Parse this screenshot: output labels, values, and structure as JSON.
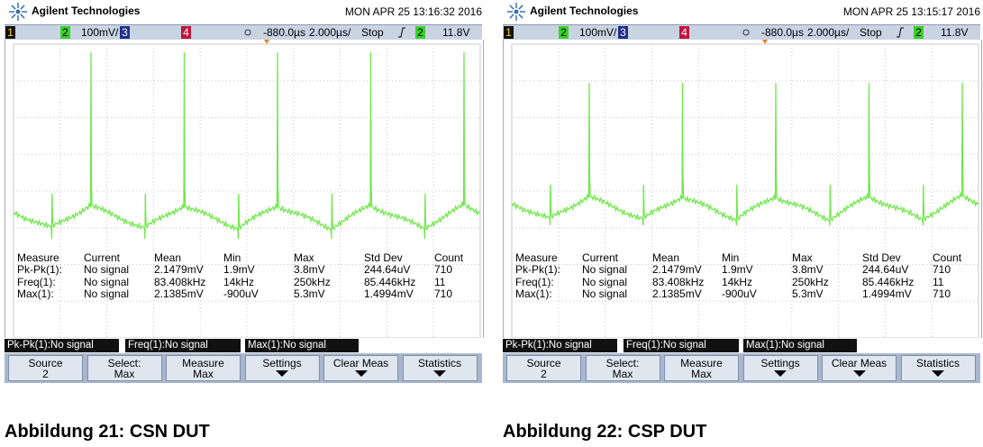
{
  "panels": [
    {
      "header": {
        "brand": "Agilent Technologies",
        "datetime": "MON APR 25 13:16:32 2016"
      },
      "status_bar": {
        "ch1": "1",
        "ch2": "2",
        "ch2_scale": "100mV/",
        "ch3": "3",
        "ch4": "4",
        "delay": "-880.0µs",
        "timebase": "2.000µs/",
        "run_state": "Stop",
        "trigger_source": "2",
        "trigger_level": "11.8V"
      },
      "measurements": {
        "header": [
          "Measure",
          "Current",
          "Mean",
          "Min",
          "Max",
          "Std Dev",
          "Count"
        ],
        "rows": [
          [
            "Pk-Pk(1):",
            "No signal",
            "2.1479mV",
            "1.9mV",
            "3.8mV",
            "244.64uV",
            "710"
          ],
          [
            "Freq(1):",
            "No signal",
            "83.408kHz",
            "14kHz",
            "250kHz",
            "85.446kHz",
            "11"
          ],
          [
            "Max(1):",
            "No signal",
            "2.1385mV",
            "-900uV",
            "5.3mV",
            "1.4994mV",
            "710"
          ]
        ]
      },
      "status_boxes": [
        "Pk-Pk(1):No signal",
        "Freq(1):No signal",
        "Max(1):No signal"
      ],
      "softkeys": [
        {
          "label": "Source",
          "value": "2"
        },
        {
          "label": "Select:",
          "value": "Max"
        },
        {
          "label": "Measure",
          "value": "Max"
        },
        {
          "label": "Settings"
        },
        {
          "label": "Clear Meas"
        },
        {
          "label": "Statistics"
        }
      ],
      "caption": "Abbildung 21: CSN DUT"
    },
    {
      "header": {
        "brand": "Agilent Technologies",
        "datetime": "MON APR 25 13:15:17 2016"
      },
      "status_bar": {
        "ch1": "1",
        "ch2": "2",
        "ch2_scale": "100mV/",
        "ch3": "3",
        "ch4": "4",
        "delay": "-880.0µs",
        "timebase": "2.000µs/",
        "run_state": "Stop",
        "trigger_source": "2",
        "trigger_level": "11.8V"
      },
      "measurements": {
        "header": [
          "Measure",
          "Current",
          "Mean",
          "Min",
          "Max",
          "Std Dev",
          "Count"
        ],
        "rows": [
          [
            "Pk-Pk(1):",
            "No signal",
            "2.1479mV",
            "1.9mV",
            "3.8mV",
            "244.64uV",
            "710"
          ],
          [
            "Freq(1):",
            "No signal",
            "83.408kHz",
            "14kHz",
            "250kHz",
            "85.446kHz",
            "11"
          ],
          [
            "Max(1):",
            "No signal",
            "2.1385mV",
            "-900uV",
            "5.3mV",
            "1.4994mV",
            "710"
          ]
        ]
      },
      "status_boxes": [
        "Pk-Pk(1):No signal",
        "Freq(1):No signal",
        "Max(1):No signal"
      ],
      "softkeys": [
        {
          "label": "Source",
          "value": "2"
        },
        {
          "label": "Select:",
          "value": "Max"
        },
        {
          "label": "Measure",
          "value": "Max"
        },
        {
          "label": "Settings"
        },
        {
          "label": "Clear Meas"
        },
        {
          "label": "Statistics"
        }
      ],
      "caption": "Abbildung 22: CSP DUT"
    }
  ]
}
